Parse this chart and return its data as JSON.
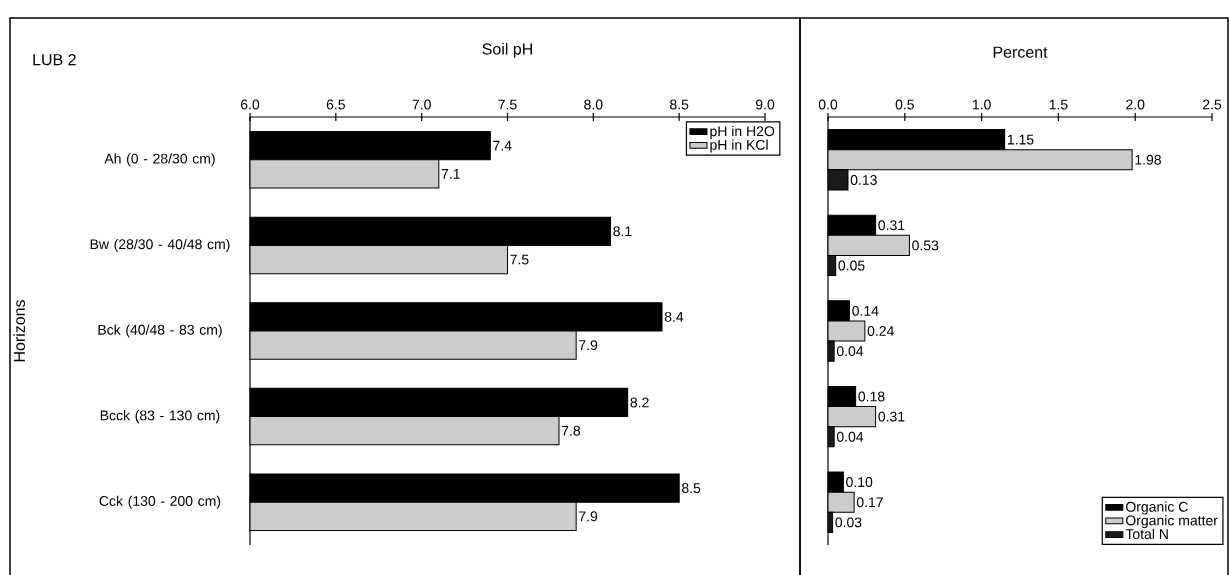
{
  "chart_data": [
    {
      "type": "bar",
      "orientation": "horizontal",
      "title": "LUB 2",
      "xlabel": "Soil pH",
      "ylabel": "Horizons",
      "categories": [
        "Ah (0 - 28/30 cm)",
        "Bw (28/30 - 40/48 cm)",
        "Bck (40/48 - 83 cm)",
        "Bcck (83 - 130 cm)",
        "Cck (130 - 200 cm)"
      ],
      "series": [
        {
          "name": "pH in H2O",
          "color": "#000000",
          "values": [
            7.4,
            8.1,
            8.4,
            8.2,
            8.5
          ]
        },
        {
          "name": "pH in KCl",
          "color": "#cccccc",
          "values": [
            7.1,
            7.5,
            7.9,
            7.8,
            7.9
          ]
        }
      ],
      "xlim": [
        6.0,
        9.0
      ],
      "xticks": [
        {
          "value": 6,
          "label": "6.0"
        },
        6.5,
        {
          "value": 7,
          "label": "7.0"
        },
        7.5,
        {
          "value": 8,
          "label": "8.0"
        },
        8.5,
        {
          "value": 9,
          "label": "9.0"
        }
      ],
      "data_labels": true,
      "legend": "top right"
    },
    {
      "type": "bar",
      "orientation": "horizontal",
      "xlabel": "Percent",
      "tick_labels": "x",
      "categories": [
        null,
        null,
        null,
        null,
        null
      ],
      "series": [
        {
          "name": "Organic C",
          "color": "#000000",
          "values": [
            1.15,
            0.31,
            0.14,
            0.18,
            0.1
          ],
          "value_labels": [
            "1.15",
            "0.31",
            "0.14",
            "0.18",
            "0.10"
          ]
        },
        {
          "name": "Organic matter",
          "color": "#cccccc",
          "values": [
            1.98,
            0.53,
            0.24,
            0.31,
            0.17
          ],
          "value_labels": [
            "1.98",
            "0.53",
            "0.24",
            "0.31",
            "0.17"
          ]
        },
        {
          "name": "Total N",
          "color": "#1a1a1a",
          "values": [
            0.13,
            0.05,
            0.04,
            0.04,
            0.03
          ],
          "value_labels": [
            "0.13",
            "0.05",
            "0.04",
            "0.04",
            "0.03"
          ]
        }
      ],
      "xlim": [
        0,
        2.5
      ],
      "xticks": [
        {
          "value": 0,
          "label": "0.0"
        },
        0.5,
        {
          "value": 1,
          "label": "1.0"
        },
        1.5,
        {
          "value": 2,
          "label": "2.0"
        },
        2.5
      ],
      "legend": "bottom right"
    }
  ]
}
